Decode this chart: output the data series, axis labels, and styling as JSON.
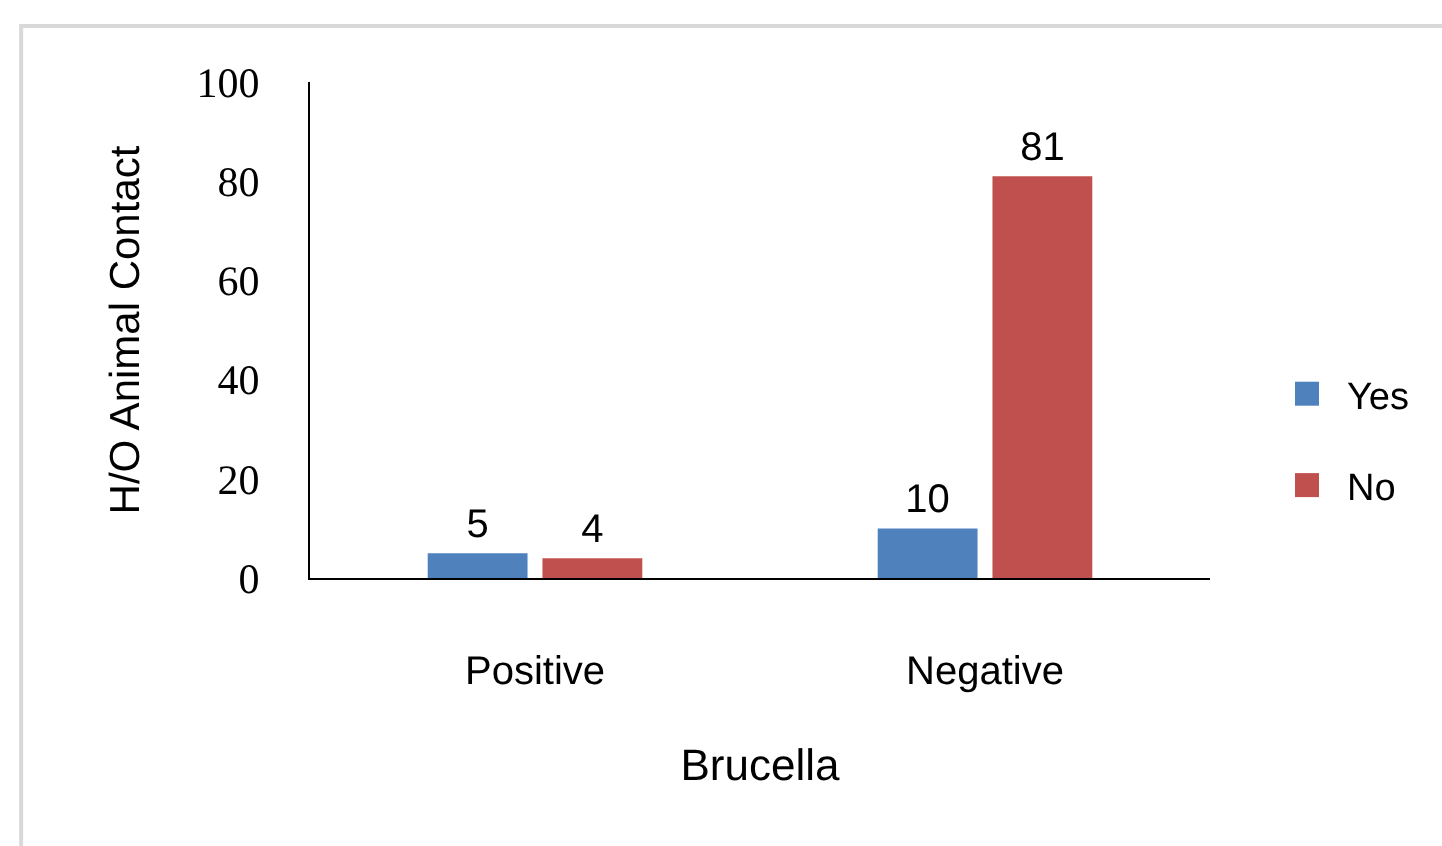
{
  "chart_data": {
    "type": "bar",
    "xlabel": "Brucella",
    "ylabel": "H/O Animal Contact",
    "categories": [
      "Positive",
      "Negative"
    ],
    "series": [
      {
        "name": "Yes",
        "color": "#4f81bd",
        "values": [
          5,
          10
        ]
      },
      {
        "name": "No",
        "color": "#c0504d",
        "values": [
          4,
          81
        ]
      }
    ],
    "ylim": [
      0,
      100
    ],
    "yticks": [
      0,
      20,
      40,
      60,
      80,
      100
    ],
    "data_labels": true,
    "legend": "right"
  }
}
